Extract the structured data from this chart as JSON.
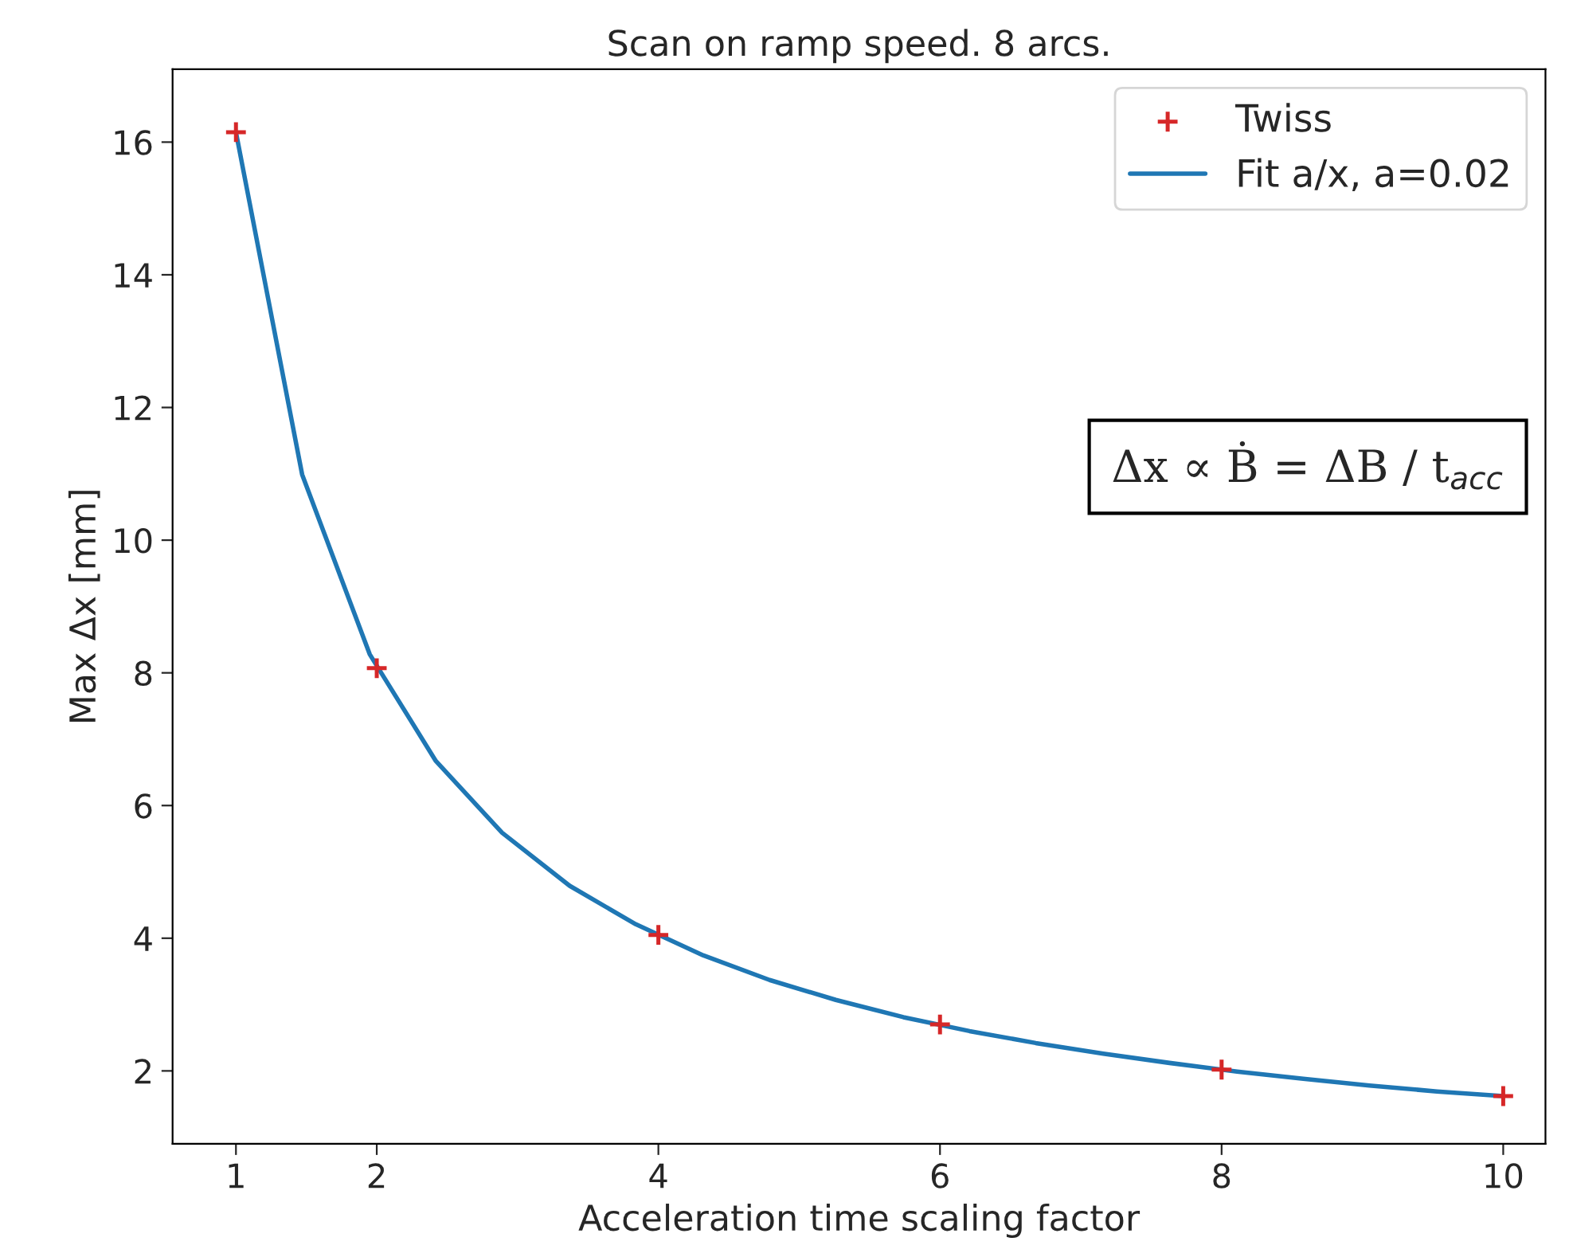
{
  "chart_data": {
    "type": "scatter",
    "title": "Scan on ramp speed. 8 arcs.",
    "xlabel": "Acceleration time scaling factor",
    "ylabel": "Max Δx [mm]",
    "xlim": [
      0.55,
      10.3
    ],
    "ylim": [
      0.9,
      17.1
    ],
    "xticks": [
      1,
      2,
      4,
      6,
      8,
      10
    ],
    "yticks": [
      2,
      4,
      6,
      8,
      10,
      12,
      14,
      16
    ],
    "grid": false,
    "legend": "top right",
    "annotations": [
      "Δx ∝ Ḃ = ΔB / t$_{acc}$"
    ],
    "series": [
      {
        "name": "Twiss",
        "marker": "cross",
        "color": "#d62728",
        "x": [
          1,
          2,
          4,
          6,
          8,
          10
        ],
        "values": [
          16.15,
          8.07,
          4.05,
          2.7,
          2.02,
          1.62
        ]
      },
      {
        "name": "Fit a/x, a=0.02",
        "type": "line",
        "marker": "none",
        "line_style": "solid",
        "color": "#1f77b4",
        "x": [
          1,
          1.47,
          1.95,
          2.42,
          2.89,
          3.37,
          3.84,
          4.32,
          4.79,
          5.26,
          5.74,
          6.21,
          6.68,
          7.16,
          7.63,
          8.11,
          8.58,
          9.05,
          9.53,
          10
        ],
        "values": [
          16.15,
          10.99,
          8.28,
          6.67,
          5.59,
          4.79,
          4.21,
          3.74,
          3.37,
          3.07,
          2.81,
          2.6,
          2.42,
          2.26,
          2.12,
          1.99,
          1.88,
          1.78,
          1.69,
          1.62
        ]
      }
    ]
  }
}
